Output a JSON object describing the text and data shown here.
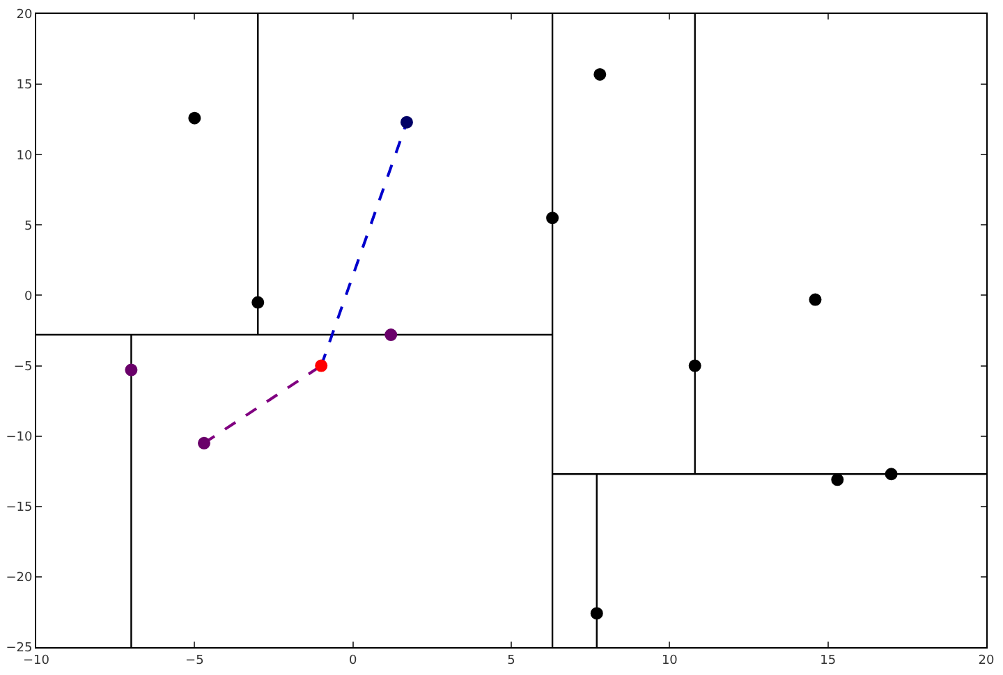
{
  "chart_data": {
    "type": "scatter",
    "xlim": [
      -10,
      20
    ],
    "ylim": [
      -25,
      20
    ],
    "xticks": [
      -10,
      -5,
      0,
      5,
      10,
      15,
      20
    ],
    "yticks": [
      -25,
      -20,
      -15,
      -10,
      -5,
      0,
      5,
      10,
      15,
      20
    ],
    "series": [
      {
        "type": "line",
        "color": "#000000",
        "marker": "none",
        "line_style": "solid",
        "x": [
          -3,
          -3
        ],
        "values": [
          -2.8,
          20
        ]
      },
      {
        "type": "line",
        "color": "#000000",
        "marker": "none",
        "line_style": "solid",
        "x": [
          -10,
          6.3
        ],
        "values": [
          -2.8,
          -2.8
        ]
      },
      {
        "type": "line",
        "color": "#000000",
        "marker": "none",
        "line_style": "solid",
        "x": [
          -7,
          -7
        ],
        "values": [
          -25,
          -2.8
        ]
      },
      {
        "type": "line",
        "color": "#000000",
        "marker": "none",
        "line_style": "solid",
        "x": [
          6.3,
          6.3
        ],
        "values": [
          -25,
          20
        ]
      },
      {
        "type": "line",
        "color": "#000000",
        "marker": "none",
        "line_style": "solid",
        "x": [
          6.3,
          20
        ],
        "values": [
          -12.7,
          -12.7
        ]
      },
      {
        "type": "line",
        "color": "#000000",
        "marker": "none",
        "line_style": "solid",
        "x": [
          10.8,
          10.8
        ],
        "values": [
          -12.7,
          20
        ]
      },
      {
        "type": "line",
        "color": "#000000",
        "marker": "none",
        "line_style": "solid",
        "x": [
          7.7,
          7.7
        ],
        "values": [
          -25,
          -12.7
        ]
      },
      {
        "type": "line",
        "color": "#0000cc",
        "marker": "none",
        "line_style": "dashed",
        "x": [
          -1,
          1.7
        ],
        "values": [
          -5,
          12.3
        ]
      },
      {
        "type": "line",
        "color": "#800080",
        "marker": "none",
        "line_style": "dashed",
        "x": [
          -4.7,
          -1
        ],
        "values": [
          -10.5,
          -5
        ]
      },
      {
        "type": "scatter",
        "color": "#000000",
        "marker": "circle",
        "x": [
          -5,
          -3,
          6.3,
          7.8,
          14.6,
          10.8,
          15.3,
          17,
          7.7
        ],
        "values": [
          12.6,
          -0.5,
          5.5,
          15.7,
          -0.3,
          -5,
          -13.1,
          -12.7,
          -22.6
        ]
      },
      {
        "type": "scatter",
        "color": "#6a006a",
        "marker": "circle",
        "x": [
          -7,
          1.2,
          -4.7
        ],
        "values": [
          -5.3,
          -2.8,
          -10.5
        ]
      },
      {
        "type": "scatter",
        "color": "#ff0000",
        "marker": "circle",
        "x": [
          -1
        ],
        "values": [
          -5
        ]
      },
      {
        "type": "scatter",
        "color": "#000066",
        "marker": "circle",
        "x": [
          1.7
        ],
        "values": [
          12.3
        ]
      }
    ]
  }
}
